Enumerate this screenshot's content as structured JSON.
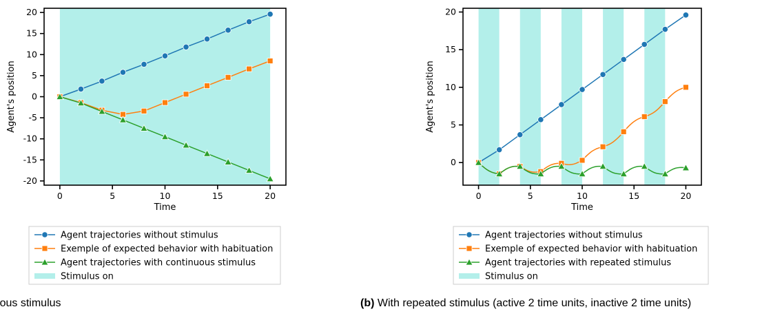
{
  "chart_data": [
    {
      "type": "line",
      "ylabel": "Agent's position",
      "xlabel": "Time",
      "xlim": [
        -1.5,
        21.5
      ],
      "ylim": [
        -21,
        21
      ],
      "xticks": [
        0,
        5,
        10,
        15,
        20
      ],
      "yticks": [
        20,
        15,
        10,
        5,
        0,
        -5,
        -10,
        -15,
        -20
      ],
      "grid": false,
      "stimulus_intervals": [
        [
          0,
          20
        ]
      ],
      "series": [
        {
          "name": "Agent trajectories without stimulus",
          "color": "#1f77b4",
          "marker": "circle",
          "x": [
            0,
            2,
            4,
            6,
            8,
            10,
            12,
            14,
            16,
            18,
            20
          ],
          "y": [
            0,
            1.8,
            3.7,
            5.8,
            7.7,
            9.7,
            11.8,
            13.7,
            15.8,
            17.8,
            19.6
          ]
        },
        {
          "name": "Exemple of expected behavior with habituation",
          "color": "#ff7f0e",
          "marker": "square",
          "x": [
            0,
            2,
            4,
            6,
            8,
            10,
            12,
            14,
            16,
            18,
            20
          ],
          "y": [
            0,
            -1.4,
            -3.2,
            -4.2,
            -3.4,
            -1.4,
            0.6,
            2.6,
            4.6,
            6.6,
            8.5
          ]
        },
        {
          "name": "Agent trajectories with continuous stimulus",
          "color": "#2ca02c",
          "marker": "triangle",
          "x": [
            0,
            2,
            4,
            6,
            8,
            10,
            12,
            14,
            16,
            18,
            20
          ],
          "y": [
            0,
            -1.5,
            -3.5,
            -5.5,
            -7.5,
            -9.5,
            -11.5,
            -13.5,
            -15.5,
            -17.5,
            -19.5
          ]
        }
      ],
      "legend": {
        "placement": "below",
        "stimulus_label": "Stimulus on"
      }
    },
    {
      "type": "line",
      "ylabel": "Agent's position",
      "xlabel": "Time",
      "xlim": [
        -1.5,
        21.5
      ],
      "ylim": [
        -3,
        20.5
      ],
      "xticks": [
        0,
        5,
        10,
        15,
        20
      ],
      "yticks": [
        20,
        15,
        10,
        5,
        0
      ],
      "grid": false,
      "stimulus_intervals": [
        [
          0,
          2
        ],
        [
          4,
          6
        ],
        [
          8,
          10
        ],
        [
          12,
          14
        ],
        [
          16,
          18
        ]
      ],
      "series": [
        {
          "name": "Agent trajectories without stimulus",
          "color": "#1f77b4",
          "marker": "circle",
          "x": [
            0,
            2,
            4,
            6,
            8,
            10,
            12,
            14,
            16,
            18,
            20
          ],
          "y": [
            0,
            1.7,
            3.7,
            5.7,
            7.7,
            9.7,
            11.7,
            13.7,
            15.7,
            17.7,
            19.6
          ]
        },
        {
          "name": "Exemple of expected behavior with habituation",
          "color": "#ff7f0e",
          "marker": "square",
          "x": [
            0,
            2,
            4,
            6,
            8,
            10,
            12,
            14,
            16,
            18,
            20
          ],
          "y": [
            0,
            -1.5,
            -0.5,
            -1.2,
            -0.1,
            0.3,
            2.1,
            4.1,
            6.1,
            8.1,
            10
          ],
          "wiggle": true
        },
        {
          "name": "Agent trajectories with repeated stimulus",
          "color": "#2ca02c",
          "marker": "triangle",
          "x": [
            0,
            2,
            4,
            6,
            8,
            10,
            12,
            14,
            16,
            18,
            20
          ],
          "y": [
            0,
            -1.5,
            -0.5,
            -1.5,
            -0.5,
            -1.5,
            -0.5,
            -1.5,
            -0.5,
            -1.5,
            -0.7
          ],
          "wiggle": true
        }
      ],
      "legend": {
        "placement": "below",
        "stimulus_label": "Stimulus on"
      }
    }
  ],
  "captions": {
    "a_text": "ontinuous stimulus",
    "b_bold": "(b)",
    "b_text": " With repeated stimulus (active 2 time units, inactive 2 time units)"
  },
  "colors": {
    "stimulus": "#b3efea",
    "axis": "#000000"
  }
}
